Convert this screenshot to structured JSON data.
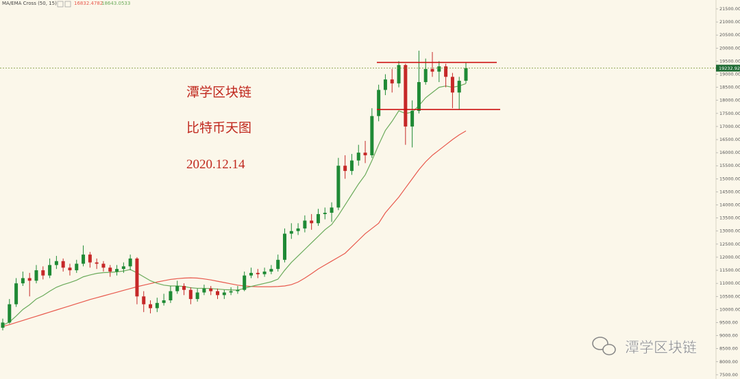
{
  "chart_data": {
    "type": "candlestick",
    "indicator": "MA/EMA Cross (50, 15)",
    "up_color": "#1f8a35",
    "down_color": "#c62828",
    "open": [
      9300,
      9500,
      10200,
      11000,
      11200,
      11100,
      11500,
      11300,
      11700,
      11850,
      11600,
      11500,
      11750,
      12100,
      11800,
      11750,
      11600,
      11450,
      11550,
      11650,
      11950,
      10500,
      10200,
      10050,
      10250,
      10350,
      10700,
      10900,
      10750,
      10400,
      10650,
      10800,
      10700,
      10550,
      10650,
      10700,
      10750,
      11300,
      11400,
      11350,
      11450,
      11550,
      11900,
      12900,
      13000,
      13100,
      13400,
      13300,
      13650,
      13700,
      13900,
      15500,
      15300,
      15700,
      16000,
      15900,
      17400,
      18400,
      18800,
      18650,
      19350,
      17000,
      17600,
      18700,
      19200,
      19100,
      19300,
      18900,
      18300,
      18750
    ],
    "high": [
      9650,
      10400,
      11200,
      11450,
      11400,
      11700,
      11650,
      11950,
      12050,
      11950,
      11750,
      11900,
      12450,
      12200,
      11950,
      11850,
      11700,
      11700,
      11800,
      12100,
      12000,
      10700,
      10350,
      10450,
      10600,
      10900,
      11100,
      11000,
      10850,
      10800,
      10950,
      10900,
      10800,
      10750,
      10850,
      10900,
      11450,
      11600,
      11550,
      11600,
      11700,
      12100,
      13100,
      13300,
      13300,
      13600,
      13650,
      13850,
      13900,
      14100,
      15800,
      15900,
      15950,
      16300,
      16450,
      17700,
      18600,
      19000,
      19200,
      19500,
      19400,
      18000,
      19900,
      19600,
      19850,
      19500,
      19400,
      19050,
      18900,
      19450
    ],
    "low": [
      9200,
      9450,
      10100,
      10900,
      10500,
      11000,
      11150,
      11200,
      11550,
      11450,
      11300,
      11400,
      11650,
      11600,
      11550,
      11450,
      11250,
      11300,
      11400,
      11500,
      10200,
      9900,
      9850,
      9900,
      10150,
      10250,
      10600,
      10550,
      10200,
      10300,
      10550,
      10550,
      10400,
      10400,
      10550,
      10600,
      10700,
      11200,
      11200,
      11250,
      11350,
      11450,
      11800,
      12700,
      12850,
      12950,
      13050,
      13200,
      13450,
      13350,
      13800,
      15000,
      15150,
      15500,
      15600,
      15800,
      17200,
      18200,
      18300,
      18500,
      16300,
      16200,
      17500,
      18600,
      18900,
      18700,
      18500,
      17700,
      17650,
      18650
    ],
    "close": [
      9500,
      10200,
      11000,
      11200,
      11100,
      11500,
      11300,
      11700,
      11850,
      11600,
      11500,
      11750,
      12100,
      11800,
      11750,
      11600,
      11450,
      11550,
      11650,
      11950,
      10500,
      10200,
      10050,
      10250,
      10350,
      10700,
      10900,
      10750,
      10400,
      10650,
      10800,
      10700,
      10550,
      10650,
      10700,
      10750,
      11300,
      11400,
      11350,
      11450,
      11550,
      11900,
      12900,
      13000,
      13100,
      13400,
      13300,
      13650,
      13700,
      13900,
      15500,
      15300,
      15700,
      16000,
      15900,
      17400,
      18400,
      18800,
      18650,
      19350,
      17000,
      17600,
      18700,
      19200,
      19100,
      19300,
      18900,
      18300,
      18750,
      19233
    ],
    "lines": [
      {
        "color": "#e8584c",
        "last_value": 16832.4782,
        "values": [
          9350,
          9420,
          9500,
          9580,
          9660,
          9740,
          9820,
          9900,
          9980,
          10060,
          10140,
          10220,
          10300,
          10380,
          10450,
          10520,
          10590,
          10660,
          10730,
          10800,
          10870,
          10930,
          10990,
          11050,
          11100,
          11150,
          11180,
          11200,
          11210,
          11200,
          11170,
          11130,
          11080,
          11030,
          10980,
          10930,
          10900,
          10880,
          10870,
          10870,
          10870,
          10880,
          10900,
          10950,
          11050,
          11200,
          11370,
          11550,
          11700,
          11850,
          12000,
          12150,
          12400,
          12650,
          12900,
          13100,
          13300,
          13700,
          14000,
          14300,
          14650,
          15000,
          15350,
          15650,
          15900,
          16100,
          16300,
          16500,
          16680,
          16832
        ]
      },
      {
        "color": "#6aaa5a",
        "last_value": 18643.0533,
        "values": [
          9400,
          9520,
          9750,
          10000,
          10180,
          10400,
          10530,
          10700,
          10850,
          10950,
          11030,
          11120,
          11250,
          11320,
          11380,
          11410,
          11420,
          11440,
          11470,
          11530,
          11400,
          11250,
          11100,
          11000,
          10930,
          10900,
          10900,
          10880,
          10830,
          10810,
          10810,
          10800,
          10780,
          10760,
          10750,
          10740,
          10810,
          10880,
          10940,
          11000,
          11060,
          11160,
          11500,
          11800,
          12050,
          12300,
          12550,
          12800,
          13050,
          13250,
          13600,
          14000,
          14400,
          14800,
          15150,
          15700,
          16300,
          16850,
          17200,
          17600,
          17500,
          17550,
          17800,
          18100,
          18300,
          18500,
          18550,
          18500,
          18550,
          18643
        ]
      }
    ],
    "levels": [
      19450,
      17650
    ],
    "level_color": "#cc1111",
    "last_price": 19232.92,
    "ylim": [
      7340,
      21840
    ],
    "yticks": [
      {
        "value": 7500,
        "label": "7500.00"
      },
      {
        "value": 8000,
        "label": "8000.00"
      },
      {
        "value": 8500,
        "label": "8500.00"
      },
      {
        "value": 9000,
        "label": "9000.00"
      },
      {
        "value": 9500,
        "label": "9500.00"
      },
      {
        "value": 10000,
        "label": "10000.00"
      },
      {
        "value": 10500,
        "label": "10500.00"
      },
      {
        "value": 11000,
        "label": "11000.00"
      },
      {
        "value": 11500,
        "label": "11500.00"
      },
      {
        "value": 12000,
        "label": "12000.00"
      },
      {
        "value": 12500,
        "label": "12500.00"
      },
      {
        "value": 13000,
        "label": "13000.00"
      },
      {
        "value": 13500,
        "label": "13500.00"
      },
      {
        "value": 14000,
        "label": "14000.00"
      },
      {
        "value": 14500,
        "label": "14500.00"
      },
      {
        "value": 15000,
        "label": "15000.00"
      },
      {
        "value": 15500,
        "label": "15500.00"
      },
      {
        "value": 16000,
        "label": "16000.00"
      },
      {
        "value": 16500,
        "label": "16500.00"
      },
      {
        "value": 17000,
        "label": "17000.00"
      },
      {
        "value": 17500,
        "label": "17500.00"
      },
      {
        "value": 18000,
        "label": "18000.00"
      },
      {
        "value": 18500,
        "label": "18500.00"
      },
      {
        "value": 19000,
        "label": "19000.00"
      },
      {
        "value": 19500,
        "label": "19500.00"
      },
      {
        "value": 20000,
        "label": "20000.00"
      },
      {
        "value": 20500,
        "label": "20500.00"
      },
      {
        "value": 21000,
        "label": "21000.00"
      },
      {
        "value": 21500,
        "label": "21500.00"
      }
    ],
    "annotations": [
      "潭学区块链",
      "比特币天图",
      "2020.12.14"
    ],
    "watermark": "潭学区块链"
  }
}
